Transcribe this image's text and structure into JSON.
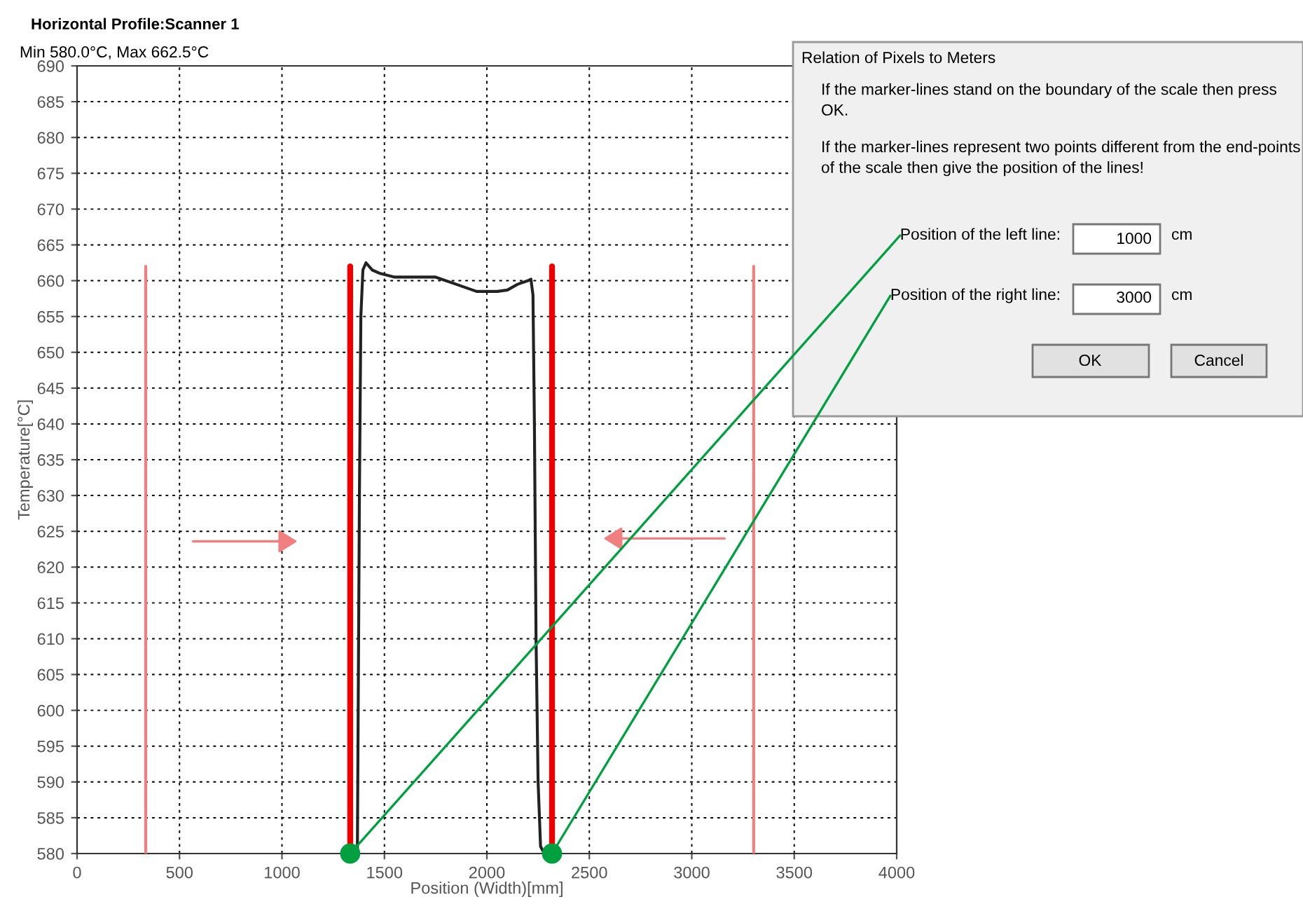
{
  "chart_data": {
    "type": "line",
    "title": "Horizontal Profile:Scanner 1",
    "xlabel": "Position (Width)[mm]",
    "ylabel": "Temperature[°C]",
    "xlim": [
      0,
      4000
    ],
    "ylim": [
      580,
      690
    ],
    "xticks": [
      0,
      500,
      1000,
      1500,
      2000,
      2500,
      3000,
      3500,
      4000
    ],
    "yticks": [
      580,
      585,
      590,
      595,
      600,
      605,
      610,
      615,
      620,
      625,
      630,
      635,
      640,
      645,
      650,
      655,
      660,
      665,
      670,
      675,
      680,
      685,
      690
    ],
    "grid": true,
    "line_style": "solid",
    "series": [
      {
        "color": "#222222",
        "x": [
          1368,
          1372,
          1378,
          1385,
          1395,
          1410,
          1440,
          1480,
          1550,
          1650,
          1750,
          1850,
          1950,
          2050,
          2100,
          2150,
          2200,
          2215,
          2225,
          2232,
          2240,
          2250,
          2262,
          2280
        ],
        "values": [
          580,
          600,
          630,
          655,
          661.5,
          662.5,
          661.5,
          661,
          660.5,
          660.5,
          660.5,
          659.5,
          658.5,
          658.5,
          658.7,
          659.5,
          660,
          660.2,
          658,
          640,
          610,
          590,
          581,
          580
        ]
      },
      {
        "color": "#ee0000",
        "x": [
          1333,
          1333
        ],
        "values": [
          580,
          662
        ]
      },
      {
        "color": "#ee0000",
        "x": [
          2318,
          2318
        ],
        "values": [
          580,
          662
        ]
      },
      {
        "color": "#f08080",
        "x": [
          335,
          335
        ],
        "values": [
          580,
          662
        ]
      },
      {
        "color": "#f08080",
        "x": [
          3302,
          3302
        ],
        "values": [
          580,
          662
        ]
      }
    ],
    "annotations": [
      "Min 580.0°C, Max 662.5°C",
      "Relation of Pixels to Meters",
      "If the marker-lines stand on the boundary of the scale then press OK.",
      "If the marker-lines represent two points different from the end-points of the scale then give the position of the lines!",
      {
        "text": "Position of the left line:",
        "x": 1333,
        "y": 580
      },
      "1000",
      "cm",
      {
        "text": "Position of the right line:",
        "x": 2318,
        "y": 580
      },
      "3000",
      "cm",
      "OK",
      "Cancel"
    ]
  }
}
